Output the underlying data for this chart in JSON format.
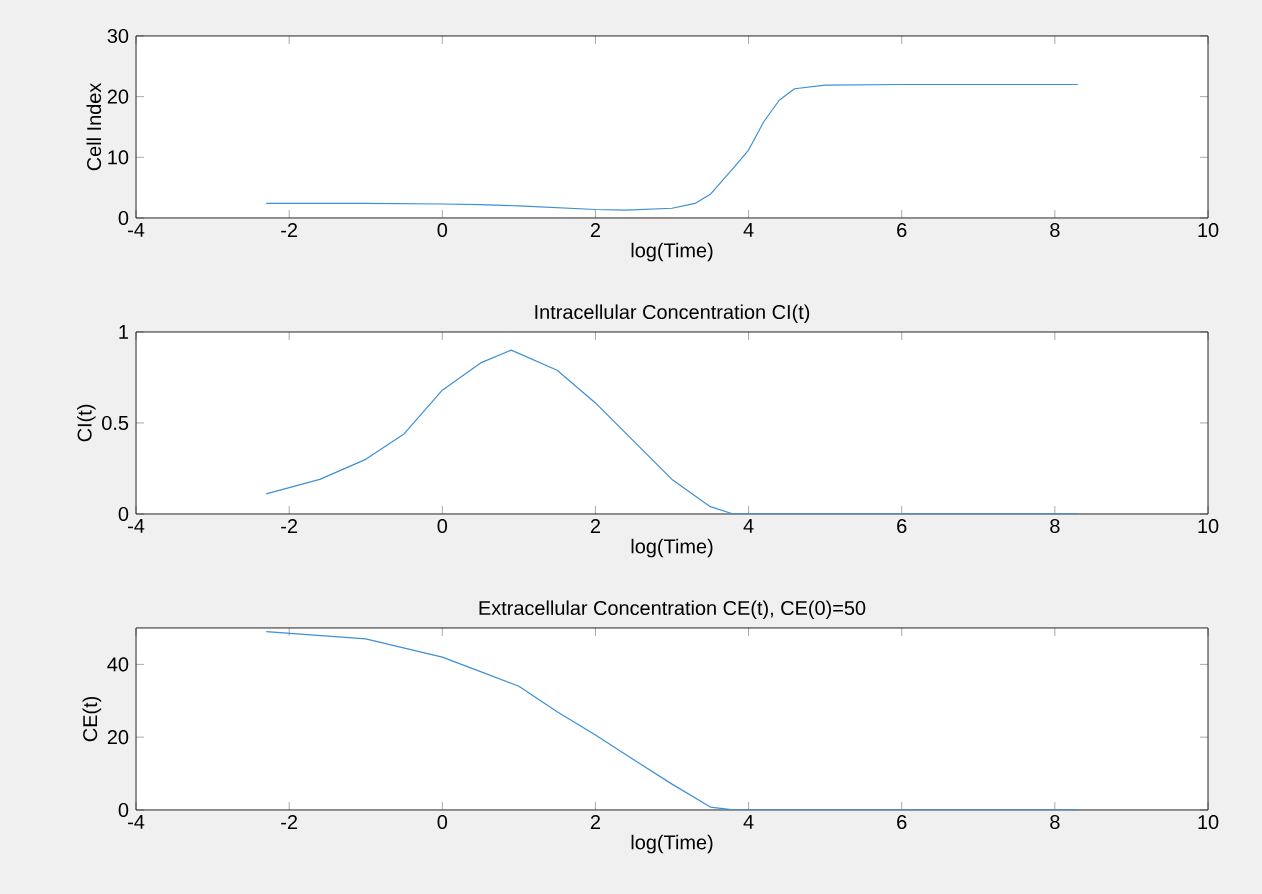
{
  "chart_data": [
    {
      "type": "line",
      "xlabel": "log(Time)",
      "ylabel": "Cell Index",
      "xlim": [
        -4,
        10
      ],
      "ylim": [
        0,
        30
      ],
      "xticks": [
        -4,
        -2,
        0,
        2,
        4,
        6,
        8,
        10
      ],
      "yticks": [
        0,
        10,
        20,
        30
      ],
      "series": [
        {
          "color": "#3d8fd6",
          "x": [
            -2.3,
            -1,
            0,
            0.5,
            1,
            1.5,
            2,
            2.4,
            3,
            3.3,
            3.5,
            3.8,
            4,
            4.2,
            4.4,
            4.6,
            5,
            6,
            7,
            8.3
          ],
          "values": [
            2.4,
            2.4,
            2.3,
            2.2,
            2.0,
            1.7,
            1.4,
            1.3,
            1.6,
            2.4,
            3.9,
            8.2,
            11.2,
            15.9,
            19.4,
            21.3,
            21.9,
            22,
            22,
            22
          ]
        }
      ]
    },
    {
      "type": "line",
      "title": "Intracellular Concentration CI(t)",
      "xlabel": "log(Time)",
      "ylabel": "CI(t)",
      "xlim": [
        -4,
        10
      ],
      "ylim": [
        0,
        1
      ],
      "xticks": [
        -4,
        -2,
        0,
        2,
        4,
        6,
        8,
        10
      ],
      "yticks": [
        0,
        0.5,
        1
      ],
      "series": [
        {
          "color": "#3d8fd6",
          "x": [
            -2.3,
            -1.6,
            -1,
            -0.5,
            0,
            0.5,
            0.9,
            1.5,
            2,
            2.5,
            3,
            3.5,
            3.8,
            5,
            6,
            7,
            8.3
          ],
          "values": [
            0.11,
            0.19,
            0.3,
            0.44,
            0.68,
            0.83,
            0.9,
            0.79,
            0.61,
            0.4,
            0.19,
            0.04,
            0,
            0,
            0,
            0,
            0
          ]
        }
      ]
    },
    {
      "type": "line",
      "title": "Extracellular Concentration CE(t), CE(0)=50",
      "xlabel": "log(Time)",
      "ylabel": "CE(t)",
      "xlim": [
        -4,
        10
      ],
      "ylim": [
        0,
        50
      ],
      "xticks": [
        -4,
        -2,
        0,
        2,
        4,
        6,
        8,
        10
      ],
      "yticks": [
        0,
        20,
        40
      ],
      "series": [
        {
          "color": "#3d8fd6",
          "x": [
            -2.3,
            -1,
            0,
            0.5,
            1,
            1.5,
            2,
            2.5,
            3,
            3.5,
            3.8,
            5,
            6,
            7,
            8.3
          ],
          "values": [
            49,
            47,
            42,
            38,
            34,
            27,
            20.6,
            13.8,
            7.1,
            0.8,
            0,
            0,
            0,
            0,
            0
          ]
        }
      ]
    }
  ]
}
